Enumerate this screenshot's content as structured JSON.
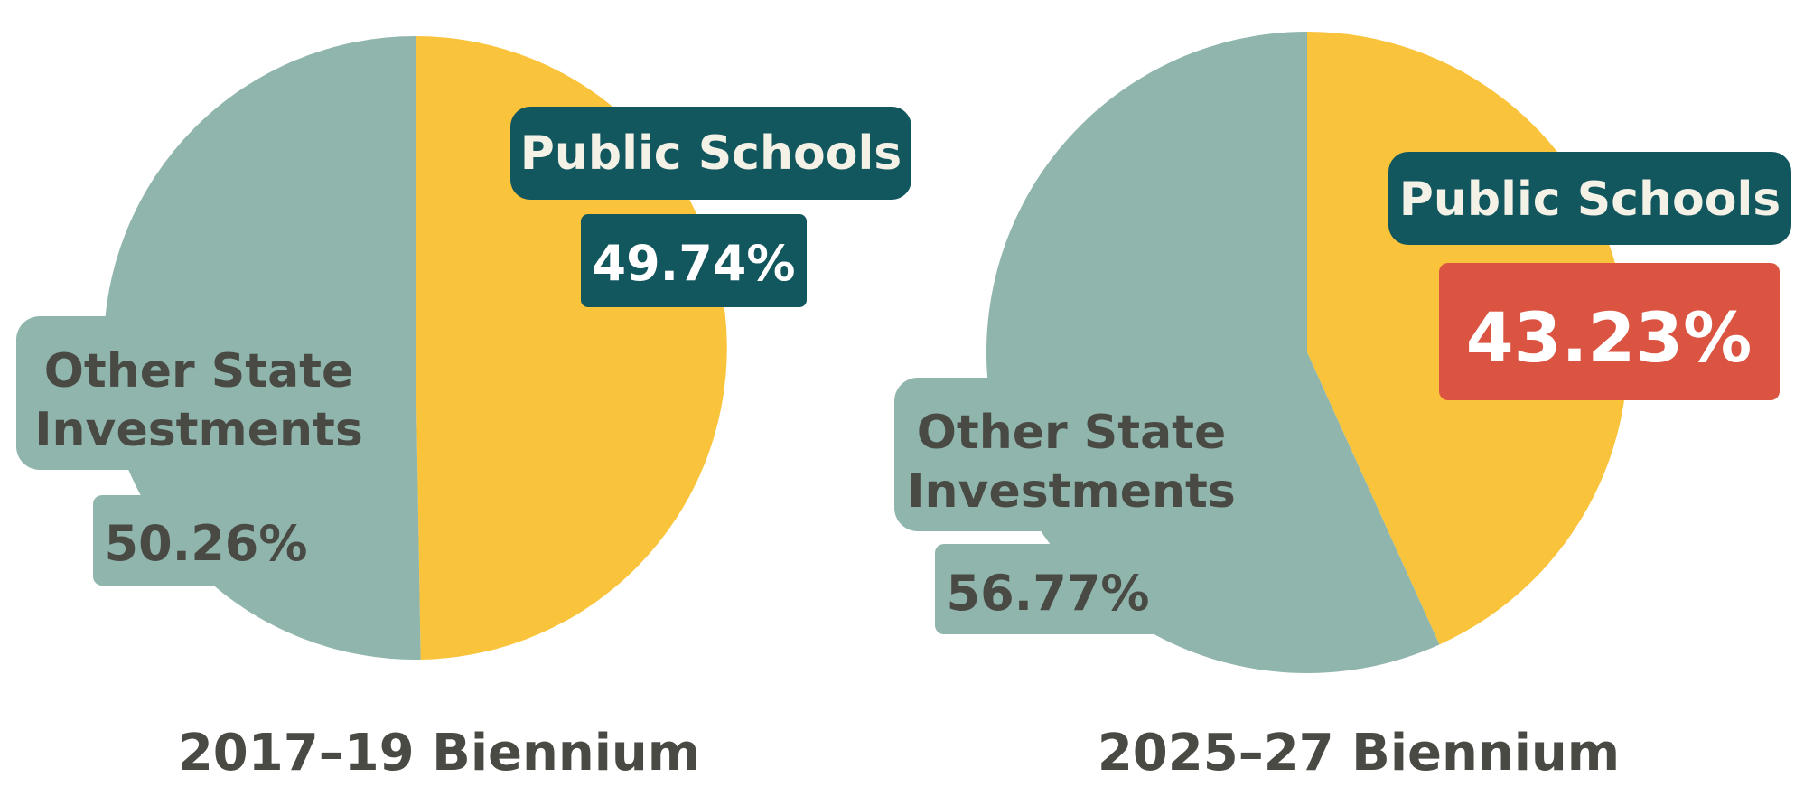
{
  "colors": {
    "public_schools": "#F9C43B",
    "other_state": "#8FB5AC",
    "label_dark_bg": "#12565E",
    "label_light_text": "#F4F1E6",
    "label_dark_text": "#4A4A45",
    "highlight_red": "#DB5442",
    "caption_text": "#4A4A45"
  },
  "chart_data": [
    {
      "type": "pie",
      "title": "2017–19 Biennium",
      "slices": [
        {
          "label": "Public Schools",
          "value": 49.74,
          "display": "49.74%",
          "color": "#F9C43B"
        },
        {
          "label": "Other State Investments",
          "label_lines": [
            "Other State",
            "Investments"
          ],
          "value": 50.26,
          "display": "50.26%",
          "color": "#8FB5AC"
        }
      ],
      "start_angle_deg": 0,
      "direction": "clockwise",
      "highlight": null
    },
    {
      "type": "pie",
      "title": "2025–27 Biennium",
      "slices": [
        {
          "label": "Public Schools",
          "value": 43.23,
          "display": "43.23%",
          "color": "#F9C43B"
        },
        {
          "label": "Other State Investments",
          "label_lines": [
            "Other State",
            "Investments"
          ],
          "value": 56.77,
          "display": "56.77%",
          "color": "#8FB5AC"
        }
      ],
      "start_angle_deg": 0,
      "direction": "clockwise",
      "highlight": "Public Schools"
    }
  ]
}
